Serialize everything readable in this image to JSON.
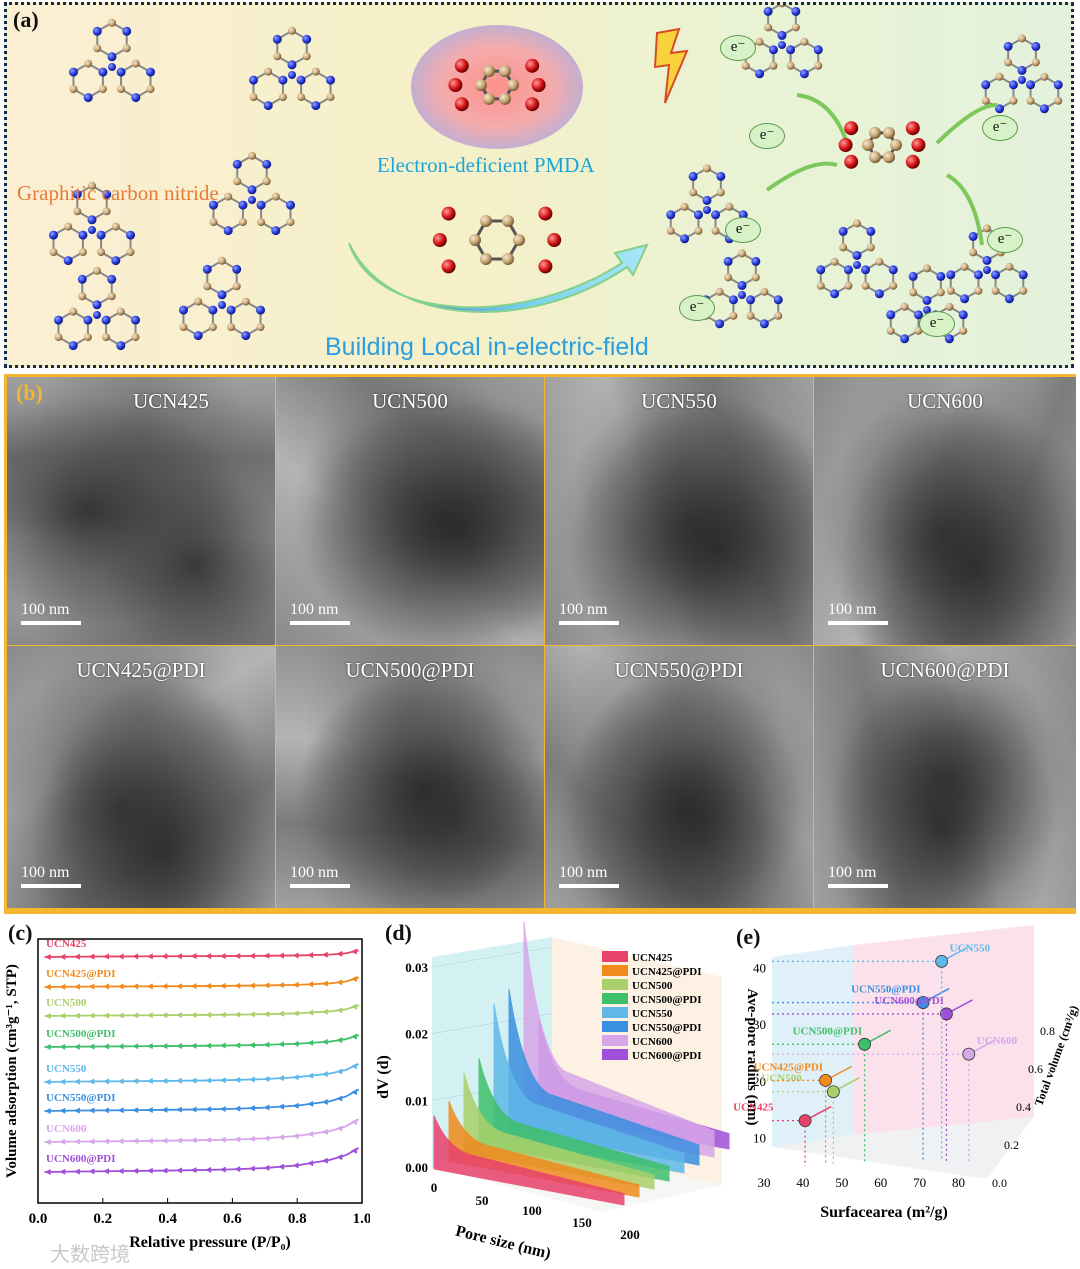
{
  "panel_a": {
    "label": "(a)",
    "graphitic_label": "Graphitic carbon nitride",
    "pmda_label": "Electron-deficient PMDA",
    "field_label": "Building Local in-electric-field",
    "electron_label": "e⁻"
  },
  "panel_b": {
    "label": "(b)",
    "scale_text": "100 nm",
    "images": [
      {
        "name": "UCN425"
      },
      {
        "name": "UCN500"
      },
      {
        "name": "UCN550"
      },
      {
        "name": "UCN600"
      },
      {
        "name": "UCN425@PDI"
      },
      {
        "name": "UCN500@PDI"
      },
      {
        "name": "UCN550@PDI"
      },
      {
        "name": "UCN600@PDI"
      }
    ]
  },
  "colors": {
    "UCN425": "#e8426b",
    "UCN425@PDI": "#f08a1c",
    "UCN500": "#a9d06a",
    "UCN500@PDI": "#3fbf6a",
    "UCN550": "#5fb8e8",
    "UCN550@PDI": "#3a8fe0",
    "UCN600": "#d7a6e8",
    "UCN600@PDI": "#a04fd8",
    "frame_b": "#f2b630",
    "nitrogen": "#2a3ee0",
    "carbon": "#c9a878"
  },
  "chart_data": [
    {
      "type": "line",
      "panel": "(c)",
      "xlabel": "Relative pressure (P/P₀)",
      "ylabel": "Volume adsorption (cm³g⁻¹, STP)",
      "xlim": [
        0.0,
        1.0
      ],
      "xticks": [
        "0.0",
        "0.2",
        "0.4",
        "0.6",
        "0.8",
        "1.0"
      ],
      "series": [
        {
          "name": "UCN425",
          "x": [
            0.02,
            0.1,
            0.2,
            0.3,
            0.4,
            0.5,
            0.6,
            0.7,
            0.8,
            0.9,
            0.95,
            0.99
          ],
          "values": [
            0,
            0.02,
            0.04,
            0.05,
            0.06,
            0.07,
            0.08,
            0.1,
            0.13,
            0.2,
            0.3,
            0.55
          ]
        },
        {
          "name": "UCN425@PDI",
          "x": [
            0.02,
            0.1,
            0.2,
            0.3,
            0.4,
            0.5,
            0.6,
            0.7,
            0.8,
            0.9,
            0.95,
            0.99
          ],
          "values": [
            0,
            0.02,
            0.04,
            0.05,
            0.06,
            0.08,
            0.1,
            0.13,
            0.18,
            0.3,
            0.45,
            0.8
          ]
        },
        {
          "name": "UCN500",
          "x": [
            0.02,
            0.1,
            0.2,
            0.3,
            0.4,
            0.5,
            0.6,
            0.7,
            0.8,
            0.9,
            0.95,
            0.99
          ],
          "values": [
            0,
            0.02,
            0.04,
            0.05,
            0.07,
            0.09,
            0.11,
            0.15,
            0.22,
            0.38,
            0.55,
            0.9
          ]
        },
        {
          "name": "UCN500@PDI",
          "x": [
            0.02,
            0.1,
            0.2,
            0.3,
            0.4,
            0.5,
            0.6,
            0.7,
            0.8,
            0.9,
            0.95,
            0.99
          ],
          "values": [
            0,
            0.02,
            0.04,
            0.06,
            0.08,
            0.1,
            0.13,
            0.18,
            0.27,
            0.45,
            0.65,
            1.0
          ]
        },
        {
          "name": "UCN550",
          "x": [
            0.02,
            0.1,
            0.2,
            0.3,
            0.4,
            0.5,
            0.6,
            0.7,
            0.8,
            0.9,
            0.95,
            0.99
          ],
          "values": [
            0,
            0.03,
            0.05,
            0.07,
            0.09,
            0.12,
            0.16,
            0.24,
            0.4,
            0.7,
            1.0,
            1.5
          ]
        },
        {
          "name": "UCN550@PDI",
          "x": [
            0.02,
            0.1,
            0.2,
            0.3,
            0.4,
            0.5,
            0.6,
            0.7,
            0.8,
            0.9,
            0.95,
            0.99
          ],
          "values": [
            0,
            0.03,
            0.05,
            0.07,
            0.1,
            0.13,
            0.18,
            0.28,
            0.45,
            0.8,
            1.2,
            1.8
          ]
        },
        {
          "name": "UCN600",
          "x": [
            0.02,
            0.1,
            0.2,
            0.3,
            0.4,
            0.5,
            0.6,
            0.7,
            0.8,
            0.9,
            0.95,
            0.99
          ],
          "values": [
            0,
            0.03,
            0.05,
            0.08,
            0.11,
            0.15,
            0.2,
            0.3,
            0.5,
            0.9,
            1.3,
            1.9
          ]
        },
        {
          "name": "UCN600@PDI",
          "x": [
            0.02,
            0.1,
            0.2,
            0.3,
            0.4,
            0.5,
            0.6,
            0.7,
            0.8,
            0.9,
            0.95,
            0.99
          ],
          "values": [
            0,
            0.03,
            0.06,
            0.09,
            0.12,
            0.16,
            0.22,
            0.33,
            0.55,
            1.0,
            1.4,
            2.0
          ]
        }
      ]
    },
    {
      "type": "area",
      "panel": "(d)",
      "xlabel": "Pore size (nm)",
      "ylabel": "dV (d)",
      "xticks": [
        "0",
        "50",
        "100",
        "150",
        "200"
      ],
      "yticks": [
        "0.00",
        "0.01",
        "0.02",
        "0.03"
      ],
      "series": [
        {
          "name": "UCN425",
          "peak": 0.008
        },
        {
          "name": "UCN425@PDI",
          "peak": 0.009
        },
        {
          "name": "UCN500",
          "peak": 0.012
        },
        {
          "name": "UCN500@PDI",
          "peak": 0.013
        },
        {
          "name": "UCN550",
          "peak": 0.02
        },
        {
          "name": "UCN550@PDI",
          "peak": 0.021
        },
        {
          "name": "UCN600",
          "peak": 0.03
        },
        {
          "name": "UCN600@PDI",
          "peak": 0.014
        }
      ]
    },
    {
      "type": "scatter",
      "panel": "(e)",
      "xlabel": "Surfacearea (m²/g)",
      "ylabel": "Ave-pore radius (nm)",
      "zlabel": "Total volume (cm³/g)",
      "xticks": [
        "30",
        "40",
        "50",
        "60",
        "70",
        "80"
      ],
      "yticks": [
        "10",
        "20",
        "30",
        "40"
      ],
      "zticks": [
        "0.0",
        "0.2",
        "0.4",
        "0.6",
        "0.8"
      ],
      "points": [
        {
          "name": "UCN425",
          "x": 38,
          "y": 13,
          "z": 0.1
        },
        {
          "name": "UCN500",
          "x": 45,
          "y": 18,
          "z": 0.15
        },
        {
          "name": "UCN425@PDI",
          "x": 43,
          "y": 20,
          "z": 0.15
        },
        {
          "name": "UCN500@PDI",
          "x": 52,
          "y": 26,
          "z": 0.35
        },
        {
          "name": "UCN550@PDI",
          "x": 66,
          "y": 33,
          "z": 0.55
        },
        {
          "name": "UCN600@PDI",
          "x": 72,
          "y": 31,
          "z": 0.55
        },
        {
          "name": "UCN600",
          "x": 78,
          "y": 24,
          "z": 0.5
        },
        {
          "name": "UCN550",
          "x": 70,
          "y": 40,
          "z": 0.7
        }
      ]
    }
  ],
  "watermark": "大数跨境"
}
